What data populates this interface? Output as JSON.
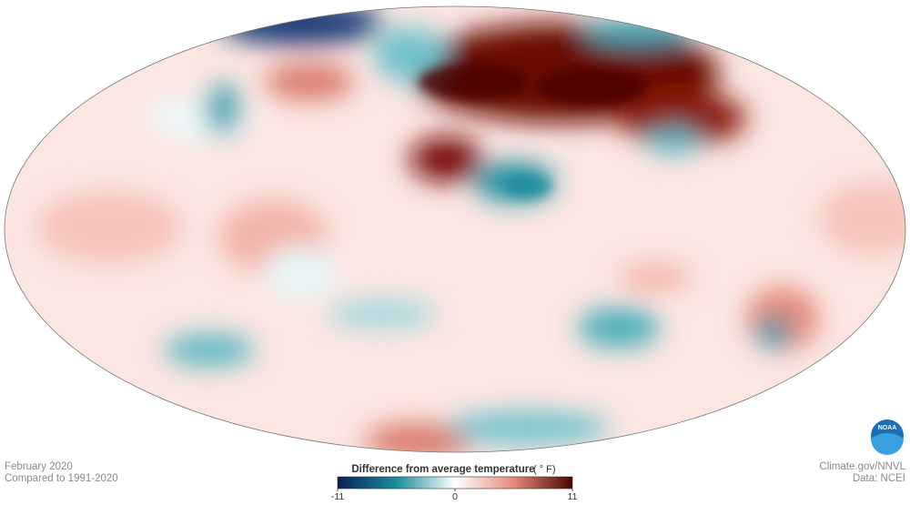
{
  "map": {
    "period": "February 2020",
    "baseline": "Compared to 1991-2020"
  },
  "colorbar": {
    "title": "Difference from average temperature",
    "unit": "( ° F)",
    "lim": [
      -11,
      11
    ],
    "ticks": [
      -11,
      0,
      11
    ],
    "colors": [
      "#0b1f55",
      "#1b8c9c",
      "#ffffff",
      "#e58a7c",
      "#4a0500"
    ]
  },
  "credits": {
    "source": "Climate.gov/NNVL",
    "data": "Data: NCEI",
    "logo": "NOAA"
  }
}
